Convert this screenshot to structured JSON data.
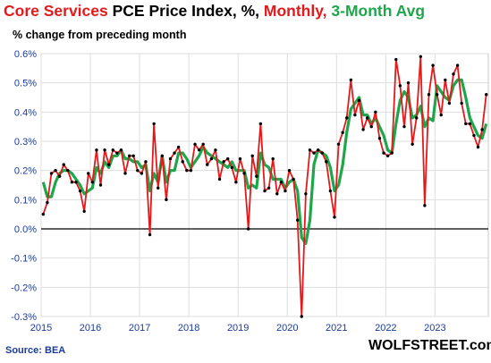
{
  "title": {
    "part1": "Core Services",
    "part2": "PCE Price Index, %,",
    "part3": "Monthly,",
    "part4": "3-Month Avg"
  },
  "subtitle": "% change from preceding month",
  "source": "Source: BEA",
  "brand": "WOLFSTREET.com",
  "colors": {
    "monthly": "#e31a1c",
    "avg": "#1fa64b",
    "marker": "#000000",
    "axis_text": "#1a3b9c",
    "grid": "#dddddd"
  },
  "chart_data": {
    "type": "line",
    "ylim": [
      -0.3,
      0.6
    ],
    "yticks": [
      -0.3,
      -0.2,
      -0.1,
      0.0,
      0.1,
      0.2,
      0.3,
      0.4,
      0.5,
      0.6
    ],
    "ytick_labels": [
      "-0.3%",
      "-0.2%",
      "-0.1%",
      "0.0%",
      "0.1%",
      "0.2%",
      "0.3%",
      "0.4%",
      "0.5%",
      "0.6%"
    ],
    "x_start": "2015-01",
    "xticks": [
      "2015",
      "2016",
      "2017",
      "2018",
      "2019",
      "2020",
      "2021",
      "2022",
      "2023"
    ],
    "grid": true,
    "legend": "title",
    "series": [
      {
        "name": "Monthly",
        "values": [
          0.05,
          0.09,
          0.19,
          0.2,
          0.18,
          0.22,
          0.2,
          0.16,
          0.16,
          0.13,
          0.06,
          0.19,
          0.16,
          0.27,
          0.15,
          0.27,
          0.22,
          0.27,
          0.26,
          0.27,
          0.19,
          0.25,
          0.25,
          0.2,
          0.19,
          0.23,
          -0.02,
          0.36,
          0.14,
          0.25,
          0.1,
          0.24,
          0.26,
          0.28,
          0.23,
          0.2,
          0.2,
          0.29,
          0.27,
          0.29,
          0.22,
          0.24,
          0.27,
          0.17,
          0.23,
          0.24,
          0.21,
          0.16,
          0.24,
          0.19,
          0.0,
          0.25,
          0.18,
          0.36,
          0.13,
          0.14,
          0.24,
          0.12,
          0.16,
          0.13,
          0.2,
          0.17,
          0.03,
          -0.3,
          0.12,
          0.27,
          0.26,
          0.27,
          0.26,
          0.23,
          0.13,
          0.04,
          0.29,
          0.33,
          0.38,
          0.51,
          0.39,
          0.44,
          0.34,
          0.38,
          0.35,
          0.4,
          0.31,
          0.26,
          0.25,
          0.26,
          0.58,
          0.49,
          0.35,
          0.5,
          0.29,
          0.38,
          0.59,
          0.08,
          0.46,
          0.56,
          0.46,
          0.39,
          0.51,
          0.43,
          0.53,
          0.56,
          0.43,
          0.36,
          0.36,
          0.32,
          0.28,
          0.34,
          0.46
        ]
      },
      {
        "name": "3-Month Avg",
        "values": [
          0.16,
          0.11,
          0.11,
          0.16,
          0.19,
          0.2,
          0.2,
          0.19,
          0.17,
          0.15,
          0.12,
          0.13,
          0.14,
          0.21,
          0.19,
          0.23,
          0.21,
          0.25,
          0.25,
          0.27,
          0.24,
          0.24,
          0.23,
          0.23,
          0.21,
          0.22,
          0.13,
          0.19,
          0.16,
          0.25,
          0.16,
          0.2,
          0.2,
          0.26,
          0.26,
          0.24,
          0.21,
          0.23,
          0.25,
          0.28,
          0.26,
          0.25,
          0.24,
          0.23,
          0.22,
          0.21,
          0.23,
          0.2,
          0.2,
          0.2,
          0.14,
          0.15,
          0.14,
          0.26,
          0.22,
          0.21,
          0.17,
          0.17,
          0.17,
          0.14,
          0.16,
          0.17,
          0.13,
          -0.03,
          -0.05,
          0.03,
          0.22,
          0.27,
          0.26,
          0.25,
          0.21,
          0.13,
          0.15,
          0.22,
          0.33,
          0.41,
          0.43,
          0.45,
          0.39,
          0.39,
          0.36,
          0.38,
          0.35,
          0.32,
          0.27,
          0.26,
          0.36,
          0.44,
          0.47,
          0.45,
          0.38,
          0.39,
          0.42,
          0.35,
          0.38,
          0.37,
          0.49,
          0.47,
          0.45,
          0.44,
          0.49,
          0.51,
          0.51,
          0.45,
          0.38,
          0.35,
          0.32,
          0.31,
          0.36
        ]
      }
    ]
  }
}
